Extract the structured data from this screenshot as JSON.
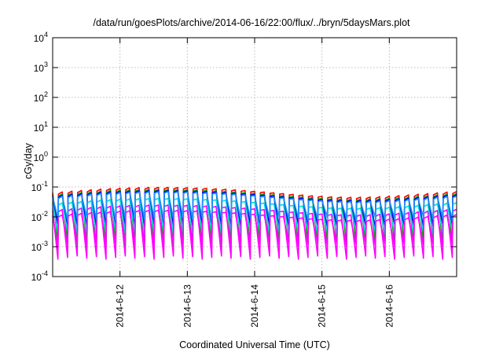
{
  "chart_data": {
    "type": "line",
    "title": "/data/run/goesPlots/archive/2014-06-16/22:00/flux/../bryn/5daysMars.plot",
    "xlabel": "Coordinated Universal Time (UTC)",
    "ylabel": "cGy/day",
    "yscale": "log",
    "ylim": [
      0.0001,
      10000
    ],
    "y_ticks": [
      {
        "base": "10",
        "exp": "-4",
        "value": 0.0001
      },
      {
        "base": "10",
        "exp": "-3",
        "value": 0.001
      },
      {
        "base": "10",
        "exp": "-2",
        "value": 0.01
      },
      {
        "base": "10",
        "exp": "-1",
        "value": 0.1
      },
      {
        "base": "10",
        "exp": "0",
        "value": 1
      },
      {
        "base": "10",
        "exp": "1",
        "value": 10
      },
      {
        "base": "10",
        "exp": "2",
        "value": 100
      },
      {
        "base": "10",
        "exp": "3",
        "value": 1000
      },
      {
        "base": "10",
        "exp": "4",
        "value": 10000
      }
    ],
    "xlim": [
      "2014-06-11T00:00",
      "2014-06-17T00:00"
    ],
    "x_ticks": [
      "2014-6-12",
      "2014-6-13",
      "2014-6-14",
      "2014-6-15",
      "2014-6-16"
    ],
    "x_tick_dates": [
      "2014-06-12",
      "2014-06-13",
      "2014-06-14",
      "2014-06-15",
      "2014-06-16"
    ],
    "grid": true,
    "legend": "none",
    "series": [
      {
        "color": "#ff00ff",
        "peak": 0.018,
        "trough": 0.00045
      },
      {
        "color": "#ff0000",
        "peak": 0.07,
        "trough": 0.0016
      },
      {
        "color": "#00aa00",
        "peak": 0.06,
        "trough": 0.0014
      },
      {
        "color": "#0000ff",
        "peak": 0.055,
        "trough": 0.005
      },
      {
        "color": "#00dddd",
        "peak": 0.03,
        "trough": 0.003
      },
      {
        "color": "#ff00ff",
        "peak": 0.012,
        "trough": 0.0012
      },
      {
        "color": "#1e90ff",
        "peak": 0.05,
        "trough": 0.009
      }
    ]
  }
}
